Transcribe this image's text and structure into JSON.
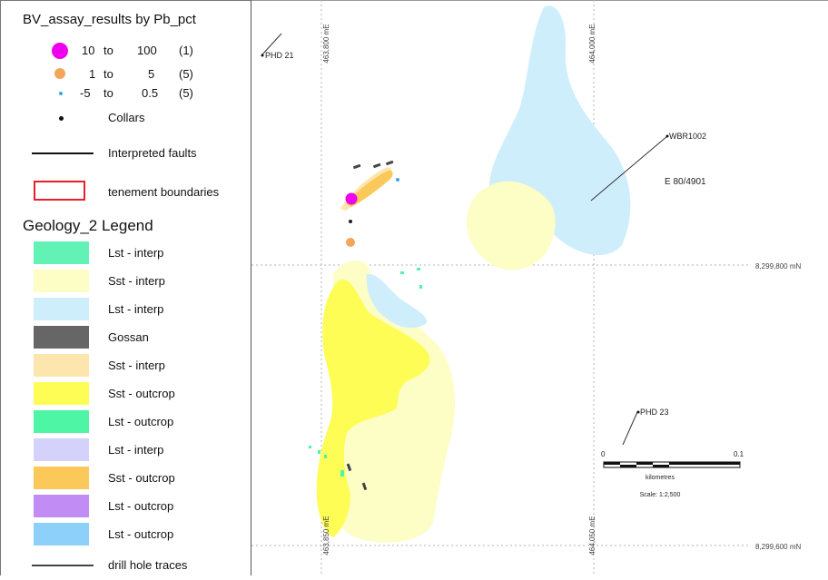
{
  "legend": {
    "assay_title": "BV_assay_results by Pb_pct",
    "assay_classes": [
      {
        "from": "10",
        "to_word": "to",
        "to": "100",
        "count": "(1)",
        "color": "#ee00ee",
        "size": "large"
      },
      {
        "from": "1",
        "to_word": "to",
        "to": "5",
        "count": "(5)",
        "color": "#f3a55a",
        "size": "medium"
      },
      {
        "from": "-5",
        "to_word": "to",
        "to": "0.5",
        "count": "(5)",
        "color": "#3aa8e0",
        "size": "small"
      }
    ],
    "collars_label": "Collars",
    "faults_label": "Interpreted faults",
    "tenement_label": "tenement boundaries",
    "tenement_color": "#e8202a",
    "geology_title": "Geology_2 Legend",
    "geology_items": [
      {
        "label": "Lst - interp",
        "color": "#62f2b5"
      },
      {
        "label": "Sst - interp",
        "color": "#fdfdc6"
      },
      {
        "label": "Lst - interp",
        "color": "#cfeefc"
      },
      {
        "label": "Gossan",
        "color": "#666666"
      },
      {
        "label": "Sst - interp",
        "color": "#fde6ae"
      },
      {
        "label": "Sst - outcrop",
        "color": "#fdfd55"
      },
      {
        "label": "Lst - outcrop",
        "color": "#4ef5a4"
      },
      {
        "label": "Lst - interp",
        "color": "#d4d2fb"
      },
      {
        "label": "Sst - outcrop",
        "color": "#fbc85a"
      },
      {
        "label": "Lst - outcrop",
        "color": "#c18cf3"
      },
      {
        "label": "Lst - outcrop",
        "color": "#8dd1fb"
      }
    ],
    "drill_label": "drill hole traces"
  },
  "map": {
    "grid_labels": {
      "easting_top_left": "463,800 mE",
      "easting_top_right": "464,000 mE",
      "easting_bottom_left": "463,850 mE",
      "easting_bottom_right": "464,050 mE",
      "northing_upper": "8,299,800 mN",
      "northing_lower": "8,299,600 mN"
    },
    "hole_labels": {
      "phd21": "PHD 21",
      "wbr1002": "WBR1002",
      "phd23": "PHD 23"
    },
    "tenement_label": "E 80/4901",
    "scalebar": {
      "start": "0",
      "end": "0.1",
      "unit": "kilometres",
      "scale_text": "Scale: 1:2,500"
    }
  }
}
